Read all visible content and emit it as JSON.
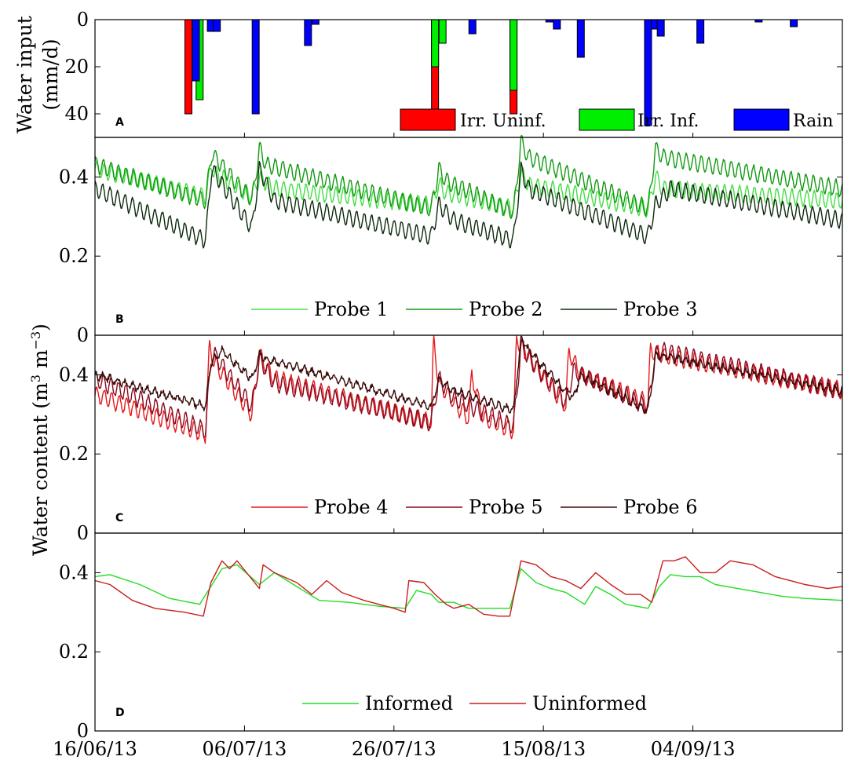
{
  "chart_data": [
    {
      "panel": "A",
      "type": "bar",
      "ylabel_line1": "Water input",
      "ylabel_line2": "(mm/d)",
      "ylim": [
        0,
        50
      ],
      "y_inverted": true,
      "yticks": [
        0,
        20,
        40
      ],
      "ytick_labels": [
        "0",
        "20",
        "40"
      ],
      "x_unit": "days since 16/06/13",
      "legend_position": "bottom-right",
      "series": [
        {
          "name": "Irr. Uninf.",
          "color": "#ff0000",
          "points": [
            {
              "x": 12.5,
              "y": 40
            },
            {
              "x": 45.5,
              "y": 40
            },
            {
              "x": 56.0,
              "y": 40
            }
          ]
        },
        {
          "name": "Irr. Inf.",
          "color": "#00ee00",
          "points": [
            {
              "x": 14.0,
              "y": 34
            },
            {
              "x": 45.5,
              "y": 20
            },
            {
              "x": 46.5,
              "y": 10
            },
            {
              "x": 56.0,
              "y": 30
            }
          ]
        },
        {
          "name": "Rain",
          "color": "#0000ff",
          "points": [
            {
              "x": 13.5,
              "y": 26
            },
            {
              "x": 15.5,
              "y": 5
            },
            {
              "x": 16.3,
              "y": 5
            },
            {
              "x": 21.5,
              "y": 40
            },
            {
              "x": 28.5,
              "y": 11
            },
            {
              "x": 29.5,
              "y": 2
            },
            {
              "x": 50.5,
              "y": 6
            },
            {
              "x": 60.8,
              "y": 1
            },
            {
              "x": 61.8,
              "y": 4
            },
            {
              "x": 65.0,
              "y": 16
            },
            {
              "x": 74.0,
              "y": 45
            },
            {
              "x": 74.9,
              "y": 4
            },
            {
              "x": 75.7,
              "y": 7
            },
            {
              "x": 81.0,
              "y": 10
            },
            {
              "x": 88.8,
              "y": 1
            },
            {
              "x": 93.5,
              "y": 3
            }
          ]
        }
      ]
    },
    {
      "panel": "B",
      "type": "line",
      "ylim": [
        0,
        0.5
      ],
      "yticks": [
        0,
        0.2,
        0.4
      ],
      "ytick_labels": [
        "0",
        "0.2",
        "0.4"
      ],
      "x_unit": "days since 16/06/13",
      "legend_position": "bottom-center",
      "series": [
        {
          "name": "Probe 1",
          "color": "#44dd44",
          "amp": 0.02,
          "noise": 0.003,
          "x": [
            0,
            14.8,
            15.6,
            16,
            21,
            22,
            24,
            45,
            46,
            47,
            56,
            57,
            58,
            74,
            75,
            76,
            100
          ],
          "y": [
            0.42,
            0.35,
            0.43,
            0.41,
            0.35,
            0.4,
            0.37,
            0.33,
            0.38,
            0.36,
            0.32,
            0.41,
            0.38,
            0.32,
            0.4,
            0.37,
            0.34
          ]
        },
        {
          "name": "Probe 2",
          "color": "#119911",
          "amp": 0.02,
          "noise": 0.003,
          "x": [
            0,
            14.8,
            15.6,
            16,
            21,
            22,
            23,
            45,
            46,
            47,
            56,
            57,
            58,
            74,
            75,
            76,
            100
          ],
          "y": [
            0.43,
            0.34,
            0.46,
            0.45,
            0.34,
            0.47,
            0.43,
            0.32,
            0.42,
            0.39,
            0.31,
            0.49,
            0.45,
            0.32,
            0.47,
            0.45,
            0.37
          ]
        },
        {
          "name": "Probe 3",
          "color": "#0d2a0d",
          "amp": 0.02,
          "noise": 0.003,
          "x": [
            0,
            14.8,
            15.6,
            16,
            21,
            22,
            24,
            45,
            46,
            48,
            56,
            57,
            58,
            74,
            75,
            77,
            100
          ],
          "y": [
            0.37,
            0.24,
            0.42,
            0.41,
            0.27,
            0.42,
            0.34,
            0.25,
            0.33,
            0.29,
            0.24,
            0.42,
            0.37,
            0.25,
            0.33,
            0.37,
            0.29
          ]
        }
      ]
    },
    {
      "panel": "C",
      "type": "line",
      "ylim": [
        0,
        0.5
      ],
      "yticks": [
        0,
        0.2,
        0.4
      ],
      "ytick_labels": [
        "0",
        "0.2",
        "0.4"
      ],
      "shared_ylabel_B_C": [
        "Water content (m",
        "3",
        " m",
        "−3",
        ")"
      ],
      "x_unit": "days since 16/06/13",
      "legend_position": "bottom-center",
      "series": [
        {
          "name": "Probe 4",
          "color": "#e41a1c",
          "amp": 0.02,
          "noise": 0.004,
          "x": [
            0,
            14.8,
            15.3,
            16,
            21,
            22,
            24,
            45,
            45.3,
            46,
            48,
            50,
            50.4,
            52,
            56,
            56.4,
            58,
            63,
            63.4,
            65,
            74,
            74.3,
            76,
            100
          ],
          "y": [
            0.35,
            0.25,
            0.47,
            0.43,
            0.3,
            0.45,
            0.39,
            0.28,
            0.49,
            0.38,
            0.33,
            0.29,
            0.4,
            0.29,
            0.26,
            0.49,
            0.45,
            0.32,
            0.46,
            0.4,
            0.33,
            0.46,
            0.45,
            0.36
          ]
        },
        {
          "name": "Probe 5",
          "color": "#8b0a1e",
          "amp": 0.02,
          "noise": 0.004,
          "x": [
            0,
            14.8,
            15.5,
            16,
            21,
            22,
            24,
            45,
            46,
            48,
            56,
            57,
            59,
            63,
            64,
            74,
            75,
            76,
            100
          ],
          "y": [
            0.39,
            0.26,
            0.44,
            0.45,
            0.32,
            0.44,
            0.38,
            0.28,
            0.39,
            0.34,
            0.27,
            0.47,
            0.42,
            0.33,
            0.41,
            0.32,
            0.45,
            0.46,
            0.36
          ]
        },
        {
          "name": "Probe 6",
          "color": "#3a0a0a",
          "amp": 0.008,
          "noise": 0.006,
          "x": [
            0,
            14.8,
            15.5,
            17,
            21,
            22,
            23,
            45,
            46,
            48,
            56,
            57,
            59,
            64,
            65,
            74,
            75,
            100
          ],
          "y": [
            0.4,
            0.32,
            0.43,
            0.46,
            0.39,
            0.45,
            0.44,
            0.32,
            0.39,
            0.36,
            0.31,
            0.49,
            0.44,
            0.34,
            0.4,
            0.31,
            0.45,
            0.36
          ]
        }
      ]
    },
    {
      "panel": "D",
      "type": "line",
      "ylim": [
        0,
        0.5
      ],
      "yticks": [
        0,
        0.2,
        0.4
      ],
      "ytick_labels": [
        "0",
        "0.2",
        "0.4"
      ],
      "xlim": [
        0,
        100
      ],
      "xticks": [
        0,
        20,
        40,
        60,
        80
      ],
      "xtick_labels": [
        "16/06/13",
        "06/07/13",
        "26/07/13",
        "15/08/13",
        "04/09/13"
      ],
      "legend_position": "bottom-center",
      "series": [
        {
          "name": "Informed",
          "color": "#22dd22",
          "x": [
            0,
            2,
            6,
            10,
            14,
            15.5,
            17,
            19,
            22,
            24,
            27,
            30,
            34,
            38,
            41.5,
            43,
            45,
            46,
            48,
            50,
            53,
            55.5,
            57,
            59,
            61,
            63,
            65.5,
            67,
            69,
            71,
            74,
            75.5,
            77,
            79,
            81,
            83,
            86,
            89,
            92,
            95,
            100
          ],
          "y": [
            0.39,
            0.395,
            0.37,
            0.335,
            0.32,
            0.365,
            0.41,
            0.42,
            0.37,
            0.4,
            0.365,
            0.33,
            0.325,
            0.315,
            0.31,
            0.355,
            0.345,
            0.325,
            0.325,
            0.31,
            0.31,
            0.31,
            0.41,
            0.375,
            0.36,
            0.35,
            0.32,
            0.365,
            0.345,
            0.32,
            0.31,
            0.365,
            0.395,
            0.39,
            0.39,
            0.37,
            0.36,
            0.35,
            0.34,
            0.335,
            0.33
          ]
        },
        {
          "name": "Uninformed",
          "color": "#c81e1e",
          "x": [
            0,
            2,
            5,
            8,
            12,
            14.5,
            15.5,
            17,
            18,
            19,
            22,
            22.5,
            24,
            27,
            29,
            31,
            33,
            36,
            40,
            41.5,
            42,
            44,
            45.5,
            47,
            48,
            50,
            52,
            54,
            55.5,
            57,
            59,
            61,
            63,
            65,
            67,
            69,
            71,
            73,
            74.5,
            76,
            77.5,
            79,
            81,
            83,
            85,
            88,
            91,
            95,
            98,
            100
          ],
          "y": [
            0.38,
            0.37,
            0.33,
            0.31,
            0.3,
            0.29,
            0.375,
            0.43,
            0.41,
            0.43,
            0.36,
            0.42,
            0.4,
            0.375,
            0.345,
            0.38,
            0.35,
            0.33,
            0.31,
            0.3,
            0.38,
            0.375,
            0.345,
            0.32,
            0.31,
            0.32,
            0.295,
            0.29,
            0.29,
            0.43,
            0.42,
            0.39,
            0.38,
            0.36,
            0.4,
            0.37,
            0.345,
            0.345,
            0.325,
            0.43,
            0.43,
            0.44,
            0.4,
            0.4,
            0.43,
            0.42,
            0.39,
            0.37,
            0.36,
            0.365
          ]
        }
      ]
    }
  ]
}
